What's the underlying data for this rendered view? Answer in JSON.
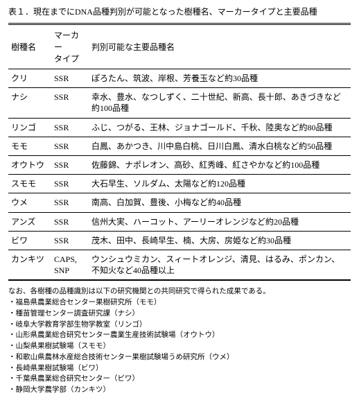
{
  "caption": "表１．現在までにDNA品種判別が可能となった樹種名、マーカータイプと主要品種",
  "headers": {
    "col1": "樹種名",
    "col2": "マーカー\nタイプ",
    "col3": "判別可能な主要品種名"
  },
  "rows": [
    {
      "species": "クリ",
      "marker": "SSR",
      "varieties": "ぽろたん、筑波、岸根、芳養玉など約30品種"
    },
    {
      "species": "ナシ",
      "marker": "SSR",
      "varieties": "幸水、豊水、なつしずく、二十世紀、新高、長十郎、あきづきなど約100品種"
    },
    {
      "species": "リンゴ",
      "marker": "SSR",
      "varieties": "ふじ、つがる、王林、ジョナゴールド、千秋、陸奥など約80品種"
    },
    {
      "species": "モモ",
      "marker": "SSR",
      "varieties": "白鳳、あかつき、川中島白桃、日川白鳳、清水白桃など約50品種"
    },
    {
      "species": "オウトウ",
      "marker": "SSR",
      "varieties": "佐藤錦、ナポレオン、高砂、紅秀峰、紅さやかなど約100品種"
    },
    {
      "species": "スモモ",
      "marker": "SSR",
      "varieties": "大石早生、ソルダム、太陽など約120品種"
    },
    {
      "species": "ウメ",
      "marker": "SSR",
      "varieties": "南高、白加賀、豊後、小梅など約40品種"
    },
    {
      "species": "アンズ",
      "marker": "SSR",
      "varieties": "信州大実、ハーコット、アーリーオレンジなど約20品種"
    },
    {
      "species": "ビワ",
      "marker": "SSR",
      "varieties": "茂木、田中、長崎早生、楠、大房、房姫など約30品種"
    },
    {
      "species": "カンキツ",
      "marker": "CAPS, SNP",
      "varieties": "ウンシュウミカン、スィートオレンジ、清見、はるみ、ポンカン、不知火など40品種以上"
    }
  ],
  "note_intro": "なお、各樹種の品種識別は以下の研究機関との共同研究で得られた成果である。",
  "notes": [
    "・福島県農業総合センター果樹研究所（モモ）",
    "・種苗管理センター調査研究課（ナシ）",
    "・岐阜大学教育学部生物学教室（リンゴ）",
    "・山形県農業総合研究センター農業生産技術試験場（オウトウ）",
    "・山梨県果樹試験場（スモモ）",
    "・和歌山県農林水産総合技術センター果樹試験場うめ研究所（ウメ）",
    "・長崎県果樹試験場（ビワ）",
    "・千葉県農業総合研究センター（ビワ）",
    "・静岡大学農学部（カンキツ）"
  ]
}
